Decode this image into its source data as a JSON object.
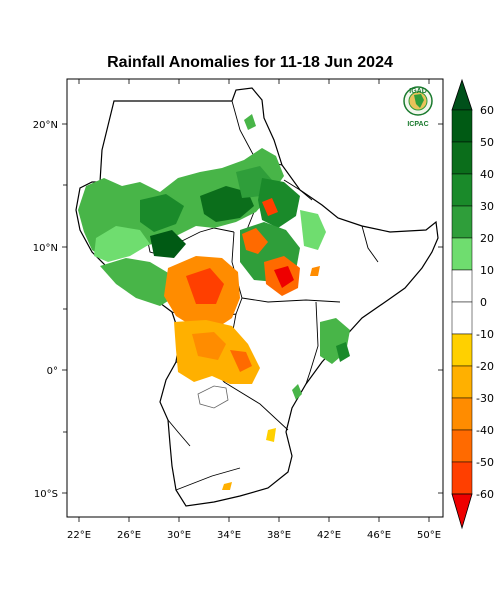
{
  "title": "Rainfall Anomalies for 11-18 Jun 2024",
  "logo": {
    "top": "IGAD",
    "bottom": "ICPAC"
  },
  "map": {
    "lon_ticks": [
      "22°E",
      "26°E",
      "30°E",
      "34°E",
      "38°E",
      "42°E",
      "46°E",
      "50°E"
    ],
    "lat_ticks": [
      "20°N",
      "10°N",
      "0°",
      "10°S"
    ],
    "colorbar": {
      "labels": [
        "60",
        "50",
        "40",
        "30",
        "20",
        "10",
        "0",
        "-10",
        "-20",
        "-30",
        "-40",
        "-50",
        "-60"
      ],
      "colors": [
        "#005a14",
        "#0b6e1b",
        "#1a8a2a",
        "#2f9e3a",
        "#48b548",
        "#6fdd6f",
        "#ffffff",
        "#ffd000",
        "#ffb000",
        "#ff8c00",
        "#ff6a00",
        "#ff3f00",
        "#ee0000"
      ],
      "top_arrow_color": "#00501a",
      "bottom_arrow_color": "#ee0000"
    }
  }
}
